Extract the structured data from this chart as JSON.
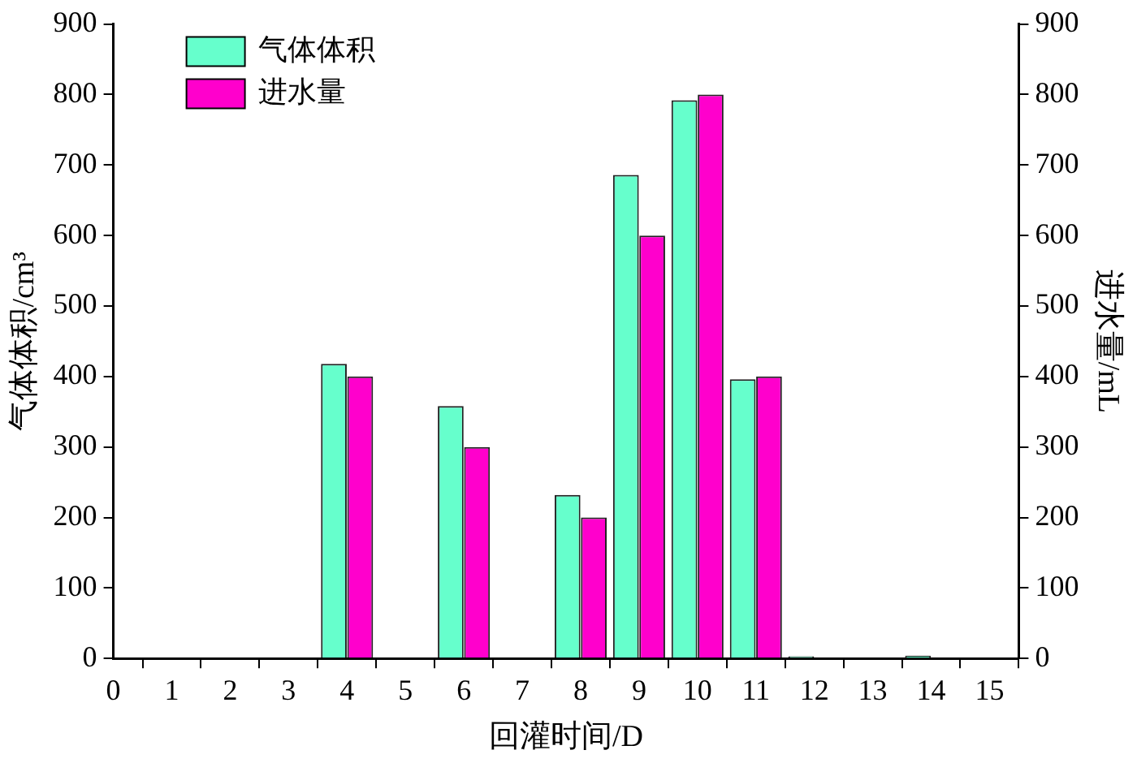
{
  "chart_data": {
    "type": "bar",
    "xlabel": "回灌时间/D",
    "ylabel": "气体体积/cm³",
    "y2label": "进水量/mL",
    "x": [
      4,
      6,
      8,
      9,
      10,
      11,
      12,
      14
    ],
    "series": [
      {
        "name": "气体体积",
        "color": "#66ffcc",
        "values": [
          418,
          358,
          232,
          686,
          792,
          396,
          3,
          4
        ]
      },
      {
        "name": "进水量",
        "color": "#ff00cc",
        "axis": "y2",
        "values": [
          400,
          300,
          200,
          600,
          800,
          400,
          null,
          null
        ]
      }
    ],
    "xlim": [
      0,
      15.5
    ],
    "xticks": [
      0,
      1,
      2,
      3,
      4,
      5,
      6,
      7,
      8,
      9,
      10,
      11,
      12,
      13,
      14,
      15
    ],
    "ylim": [
      0,
      900
    ],
    "yticks": [
      0,
      100,
      200,
      300,
      400,
      500,
      600,
      700,
      800,
      900
    ],
    "y2lim": [
      0,
      900
    ],
    "y2ticks": [
      0,
      100,
      200,
      300,
      400,
      500,
      600,
      700,
      800,
      900
    ],
    "legend": "top left",
    "grid": false
  }
}
